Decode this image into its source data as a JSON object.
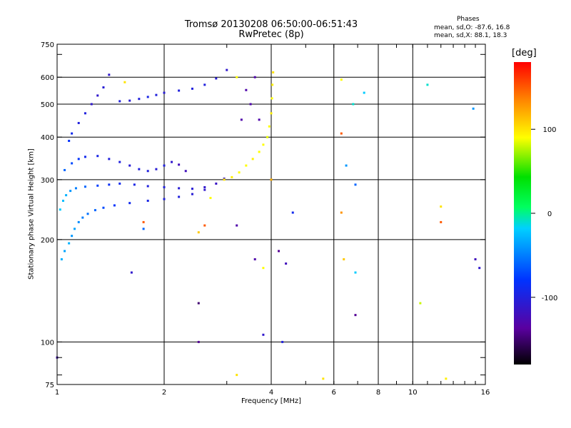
{
  "header": {
    "title_line1": "Tromsø 20130208 06:50:00-06:51:43",
    "title_line2": "RwPretec (8p)",
    "stats_title": "Phases",
    "stats_o": "mean, sd,O: -87.6, 16.8",
    "stats_x": "mean, sd,X:  88.1, 18.3"
  },
  "chart_data": {
    "type": "scatter",
    "title": "Tromsø 20130208 06:50:00-06:51:43",
    "subtitle": "RwPretec (8p)",
    "xlabel": "Frequency [MHz]",
    "ylabel": "Stationary phase Virtual Height [km]",
    "x_scale": "log",
    "y_scale": "log",
    "xlim": [
      1,
      16
    ],
    "ylim": [
      75,
      750
    ],
    "x_ticks": [
      1,
      2,
      4,
      6,
      8,
      10,
      16
    ],
    "x_tick_labels": [
      "1",
      "2",
      "4",
      "6",
      "8",
      "10",
      "16"
    ],
    "x_gridlines": [
      2,
      4,
      6,
      8,
      10
    ],
    "y_ticks": [
      75,
      100,
      200,
      300,
      400,
      500,
      600,
      750
    ],
    "y_tick_labels": [
      "75",
      "100",
      "200",
      "300",
      "400",
      "500",
      "600",
      "750"
    ],
    "y_gridlines": [
      100,
      200,
      300,
      400,
      500,
      600
    ],
    "grid": true,
    "colorbar": {
      "label": "[deg]",
      "range": [
        -180,
        180
      ],
      "ticks": [
        100,
        0,
        -100
      ],
      "tick_labels": [
        "100",
        "0",
        "-100"
      ]
    },
    "series": [
      {
        "points": [
          [
            1.03,
            175,
            -30
          ],
          [
            1.05,
            185,
            -35
          ],
          [
            1.08,
            195,
            -30
          ],
          [
            1.1,
            205,
            -40
          ],
          [
            1.12,
            215,
            -35
          ],
          [
            1.15,
            225,
            -45
          ],
          [
            1.18,
            232,
            -50
          ],
          [
            1.22,
            238,
            -55
          ],
          [
            1.28,
            244,
            -60
          ],
          [
            1.35,
            248,
            -70
          ],
          [
            1.45,
            252,
            -80
          ],
          [
            1.6,
            256,
            -90
          ],
          [
            1.8,
            260,
            -95
          ],
          [
            2.0,
            263,
            -100
          ],
          [
            2.2,
            267,
            -100
          ],
          [
            2.4,
            272,
            -105
          ],
          [
            2.6,
            280,
            -110
          ],
          [
            2.8,
            292,
            -115
          ],
          [
            2.95,
            302,
            -115
          ],
          [
            1.02,
            245,
            -20
          ],
          [
            1.04,
            260,
            -25
          ],
          [
            1.06,
            270,
            -30
          ],
          [
            1.09,
            278,
            -40
          ],
          [
            1.13,
            283,
            -50
          ],
          [
            1.2,
            286,
            -60
          ],
          [
            1.3,
            288,
            -75
          ],
          [
            1.4,
            290,
            -85
          ],
          [
            1.5,
            292,
            -90
          ],
          [
            1.65,
            290,
            -95
          ],
          [
            1.8,
            287,
            -100
          ],
          [
            2.0,
            285,
            -100
          ],
          [
            2.2,
            283,
            -105
          ],
          [
            2.4,
            282,
            -105
          ],
          [
            2.6,
            285,
            -110
          ],
          [
            1.05,
            320,
            -60
          ],
          [
            1.1,
            335,
            -70
          ],
          [
            1.15,
            345,
            -80
          ],
          [
            1.2,
            350,
            -90
          ],
          [
            1.3,
            352,
            -95
          ],
          [
            1.4,
            345,
            -100
          ],
          [
            1.5,
            338,
            -100
          ],
          [
            1.6,
            330,
            -105
          ],
          [
            1.7,
            322,
            -100
          ],
          [
            1.8,
            318,
            -100
          ],
          [
            1.9,
            322,
            -105
          ],
          [
            2.0,
            330,
            -100
          ],
          [
            2.1,
            338,
            -110
          ],
          [
            2.2,
            332,
            -120
          ],
          [
            2.3,
            318,
            -120
          ],
          [
            1.08,
            390,
            -80
          ],
          [
            1.1,
            410,
            -90
          ],
          [
            1.15,
            440,
            -100
          ],
          [
            1.2,
            470,
            -100
          ],
          [
            1.25,
            500,
            -110
          ],
          [
            1.3,
            530,
            -110
          ],
          [
            1.35,
            560,
            -105
          ],
          [
            1.4,
            610,
            -110
          ],
          [
            1.5,
            510,
            -100
          ],
          [
            1.6,
            512,
            -105
          ],
          [
            1.7,
            518,
            -100
          ],
          [
            1.8,
            525,
            -95
          ],
          [
            1.9,
            532,
            -100
          ],
          [
            2.0,
            540,
            -105
          ],
          [
            2.2,
            548,
            -100
          ],
          [
            2.4,
            555,
            -100
          ],
          [
            2.6,
            570,
            -100
          ],
          [
            2.8,
            595,
            -105
          ],
          [
            3.0,
            630,
            -110
          ],
          [
            1.0,
            90,
            -120
          ],
          [
            1.62,
            160,
            -110
          ],
          [
            1.75,
            215,
            -60
          ],
          [
            2.5,
            100,
            -140
          ],
          [
            2.5,
            130,
            -150
          ],
          [
            3.2,
            220,
            -130
          ],
          [
            3.6,
            175,
            -130
          ],
          [
            3.8,
            105,
            -110
          ],
          [
            4.2,
            185,
            -140
          ],
          [
            4.3,
            100,
            -100
          ],
          [
            4.4,
            170,
            -120
          ],
          [
            6.9,
            160,
            -20
          ],
          [
            6.9,
            120,
            -140
          ],
          [
            10.5,
            130,
            80
          ],
          [
            11.0,
            570,
            -10
          ],
          [
            12.0,
            225,
            150
          ],
          [
            14.8,
            485,
            -40
          ],
          [
            15.0,
            175,
            -120
          ],
          [
            15.4,
            165,
            -110
          ],
          [
            6.5,
            330,
            -40
          ],
          [
            6.8,
            500,
            -10
          ],
          [
            6.9,
            290,
            -60
          ],
          [
            7.3,
            540,
            -20
          ],
          [
            4.6,
            240,
            -90
          ]
        ]
      },
      {
        "points": [
          [
            2.95,
            300,
            100
          ],
          [
            3.1,
            305,
            95
          ],
          [
            3.25,
            315,
            90
          ],
          [
            3.4,
            330,
            90
          ],
          [
            3.55,
            345,
            95
          ],
          [
            3.7,
            362,
            90
          ],
          [
            3.8,
            380,
            90
          ],
          [
            3.9,
            400,
            85
          ],
          [
            3.95,
            430,
            90
          ],
          [
            4.0,
            470,
            95
          ],
          [
            4.02,
            520,
            90
          ],
          [
            4.03,
            570,
            95
          ],
          [
            4.05,
            620,
            100
          ],
          [
            3.2,
            600,
            90
          ],
          [
            3.7,
            450,
            -130
          ],
          [
            3.5,
            500,
            -130
          ],
          [
            3.3,
            450,
            -130
          ],
          [
            3.4,
            550,
            -130
          ],
          [
            3.6,
            600,
            -130
          ],
          [
            2.6,
            220,
            150
          ],
          [
            2.7,
            265,
            90
          ],
          [
            3.2,
            80,
            100
          ],
          [
            3.8,
            165,
            90
          ],
          [
            4.0,
            300,
            120
          ],
          [
            5.6,
            78,
            100
          ],
          [
            6.3,
            590,
            90
          ],
          [
            6.3,
            240,
            130
          ],
          [
            6.3,
            410,
            150
          ],
          [
            6.4,
            175,
            110
          ],
          [
            12.0,
            250,
            100
          ],
          [
            12.4,
            78,
            95
          ],
          [
            1.75,
            225,
            150
          ],
          [
            2.5,
            210,
            110
          ],
          [
            1.55,
            580,
            100
          ]
        ]
      }
    ]
  }
}
